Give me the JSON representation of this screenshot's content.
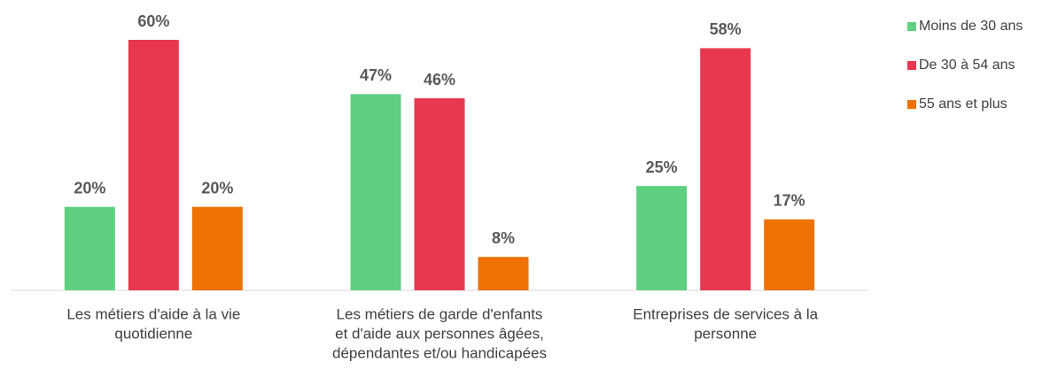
{
  "chart_data": {
    "type": "bar",
    "categories": [
      [
        "Les métiers d'aide à la vie",
        "quotidienne"
      ],
      [
        "Les métiers de garde d'enfants",
        "et d'aide aux personnes âgées,",
        "dépendantes et/ou handicapées"
      ],
      [
        "Entreprises de services à la",
        "personne"
      ]
    ],
    "series": [
      {
        "name": "Moins de 30 ans",
        "color": "#5fd07f",
        "values": [
          20,
          47,
          25
        ],
        "value_labels": [
          "20%",
          "47%",
          "25%"
        ]
      },
      {
        "name": "De 30 à 54 ans",
        "color": "#e8384f",
        "values": [
          60,
          46,
          58
        ],
        "value_labels": [
          "60%",
          "46%",
          "58%"
        ]
      },
      {
        "name": "55 ans et plus",
        "color": "#ed7203",
        "values": [
          20,
          8,
          17
        ],
        "value_labels": [
          "20%",
          "8%",
          "17%"
        ]
      }
    ],
    "legend": "right"
  }
}
